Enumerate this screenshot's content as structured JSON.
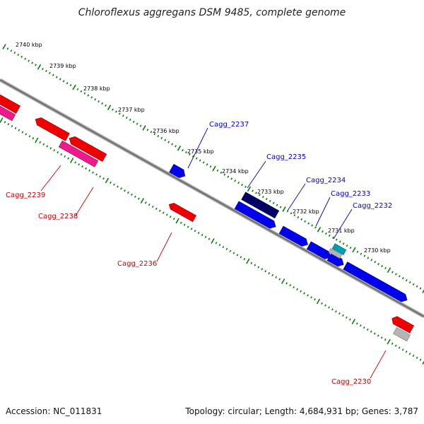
{
  "title": "Chloroflexus aggregans DSM 9485, complete genome",
  "footer": {
    "accession": "Accession: NC_011831",
    "summary": "Topology: circular; Length: 4,684,931 bp; Genes: 3,787"
  },
  "kbp_labels": [
    "2740 kbp",
    "2739 kbp",
    "2738 kbp",
    "2737 kbp",
    "2736 kbp",
    "2735 kbp",
    "2734 kbp",
    "2733 kbp",
    "2732 kbp",
    "2731 kbp",
    "2730 kbp"
  ],
  "gene_labels": {
    "forward": [
      "Cagg_2237",
      "Cagg_2235",
      "Cagg_2234",
      "Cagg_2233",
      "Cagg_2232"
    ],
    "reverse": [
      "Cagg_2239",
      "Cagg_2238",
      "Cagg_2236",
      "Cagg_2230"
    ]
  },
  "colors": {
    "backbone": "#888888",
    "tick": "#0a7d0a",
    "forward_label": "#0000cc",
    "reverse_label": "#cc0000",
    "gene_blue": "#0000ee",
    "gene_navy": "#000066",
    "gene_cyan": "#00a0b4",
    "gene_red": "#ee0000",
    "gene_pink": "#ee1a8c",
    "gene_grey": "#b4b4b4"
  }
}
